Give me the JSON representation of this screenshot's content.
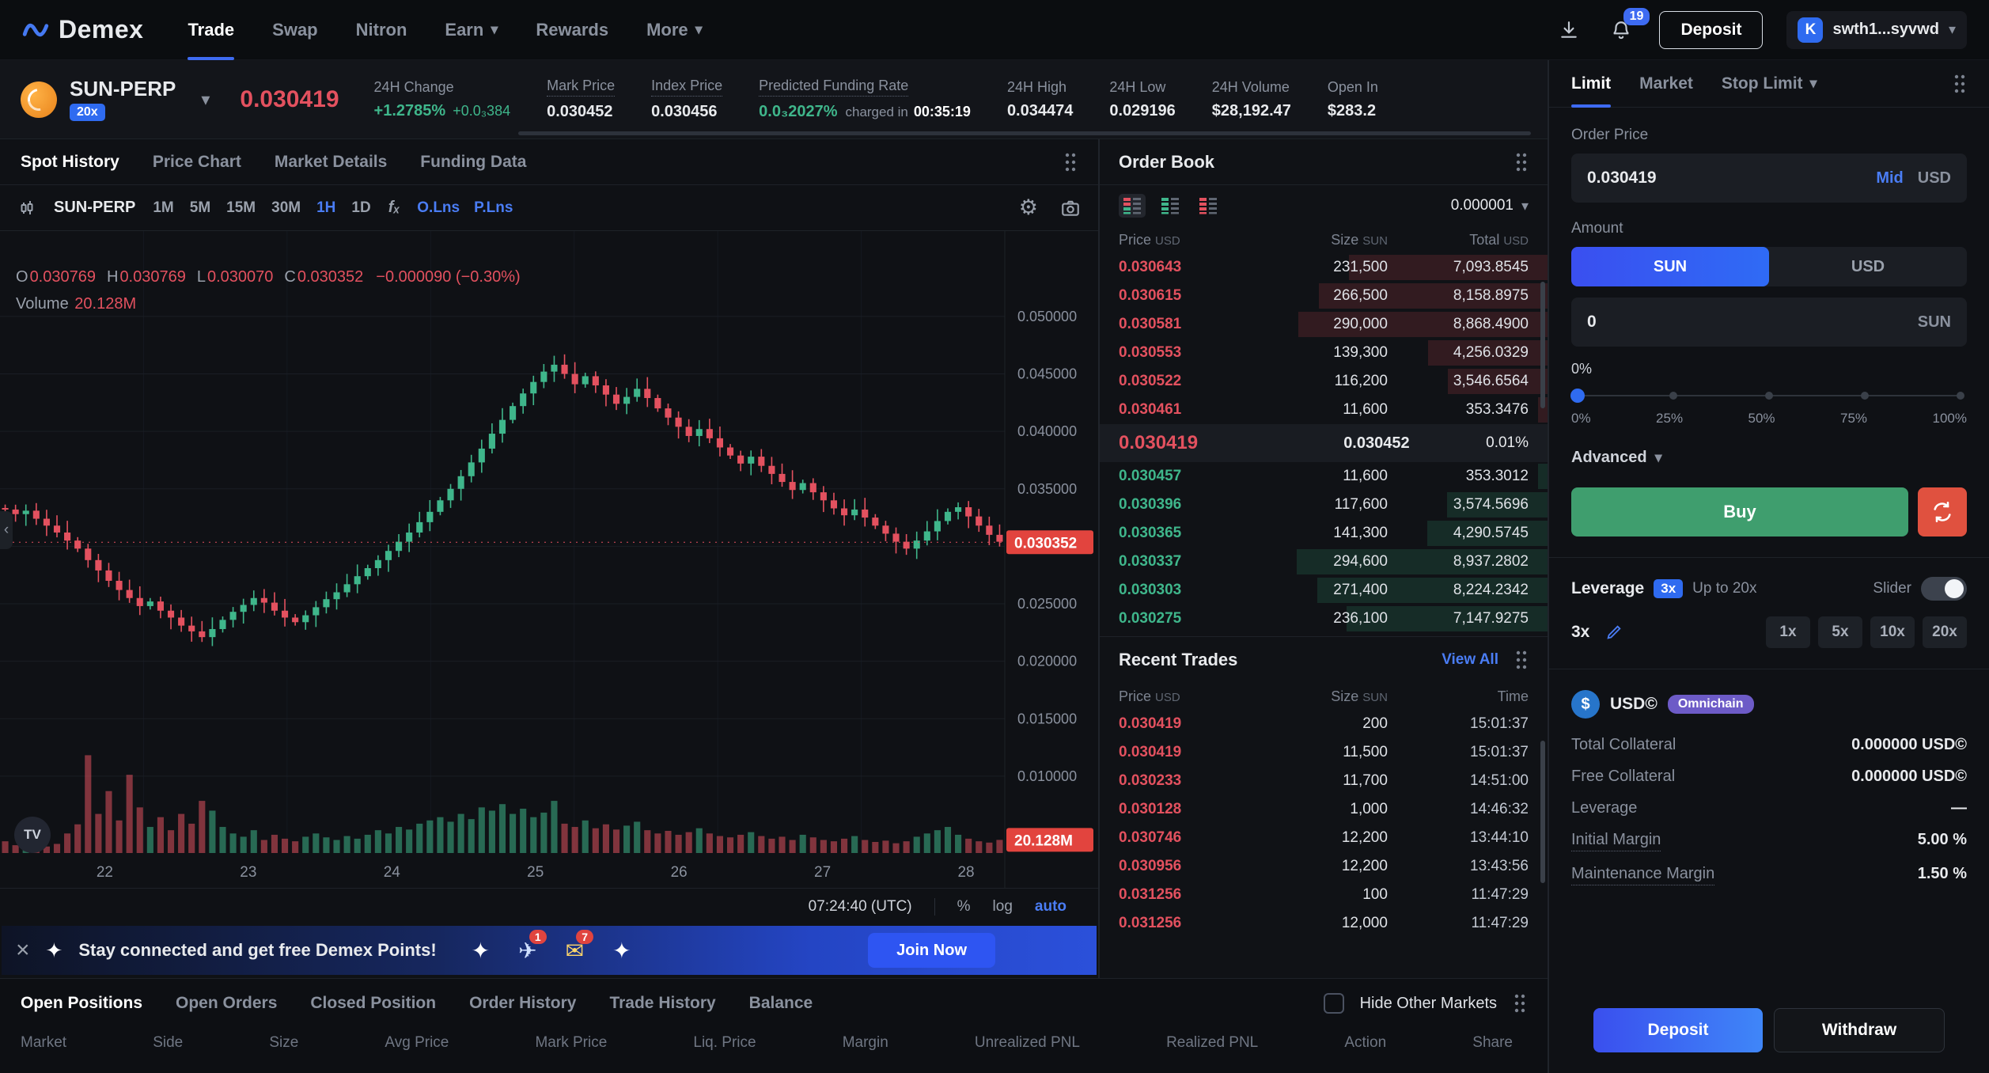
{
  "colors": {
    "accent": "#3e6bf2",
    "link": "#4a7df5",
    "up": "#3fb68b",
    "down": "#e3515f",
    "buy_green": "#3f9e6e",
    "sell_switch": "#e0513f",
    "price_tag": "#e2443e",
    "omnichain_purple": "#6d5bc7"
  },
  "icons": {
    "gear": "⚙",
    "chevron": "▾",
    "close": "×",
    "collapse": "‹",
    "tv": "TV"
  },
  "navbar": {
    "logo_text": "Demex",
    "items": [
      {
        "label": "Trade",
        "active": true,
        "dropdown": false
      },
      {
        "label": "Swap",
        "active": false,
        "dropdown": false
      },
      {
        "label": "Nitron",
        "active": false,
        "dropdown": false
      },
      {
        "label": "Earn",
        "active": false,
        "dropdown": true
      },
      {
        "label": "Rewards",
        "active": false,
        "dropdown": false
      },
      {
        "label": "More",
        "active": false,
        "dropdown": true
      }
    ],
    "notification_badge": "19",
    "deposit_label": "Deposit",
    "wallet_initial": "K",
    "wallet_address": "swth1...syvwd"
  },
  "market_header": {
    "pair": "SUN-PERP",
    "max_leverage_badge": "20x",
    "last_price": "0.030419",
    "stats": [
      {
        "label": "24H Change",
        "value": "+1.2785%",
        "extra": "+0.0₃384",
        "tone": "up",
        "dotted": false
      },
      {
        "label": "Mark Price",
        "value": "0.030452",
        "tone": "normal",
        "dotted": true
      },
      {
        "label": "Index Price",
        "value": "0.030456",
        "tone": "normal",
        "dotted": true
      },
      {
        "label": "Predicted Funding Rate",
        "value": "0.0₃2027%",
        "tone": "up",
        "dotted": true,
        "suffix_label": "charged in",
        "suffix_value": "00:35:19"
      },
      {
        "label": "24H High",
        "value": "0.034474",
        "tone": "normal",
        "dotted": false
      },
      {
        "label": "24H Low",
        "value": "0.029196",
        "tone": "normal",
        "dotted": false
      },
      {
        "label": "24H Volume",
        "value": "$28,192.47",
        "tone": "normal",
        "dotted": false
      },
      {
        "label": "Open In",
        "value": "$283.2",
        "tone": "normal",
        "dotted": false
      }
    ]
  },
  "chart_panel": {
    "tabs": [
      {
        "label": "Spot History",
        "active": true
      },
      {
        "label": "Price Chart",
        "active": false
      },
      {
        "label": "Market Details",
        "active": false
      },
      {
        "label": "Funding Data",
        "active": false
      }
    ],
    "toolbar": {
      "pair": "SUN-PERP",
      "intervals": [
        "1M",
        "5M",
        "15M",
        "30M",
        "1H",
        "1D"
      ],
      "active_interval": "1H",
      "fx": "fₓ",
      "indicators": [
        "O.Lns",
        "P.Lns"
      ]
    },
    "ohlc": {
      "pairs": [
        [
          "O",
          "0.030769"
        ],
        [
          "H",
          "0.030769"
        ],
        [
          "L",
          "0.030070"
        ],
        [
          "C",
          "0.030352"
        ]
      ],
      "change": "−0.000090 (−0.30%)",
      "volume_label": "Volume",
      "volume_value": "20.128M"
    },
    "footer": {
      "time": "07:24:40 (UTC)",
      "percent": "%",
      "log": "log",
      "auto": "auto"
    },
    "last_price_tag": "0.030352",
    "volume_tag": "20.128M"
  },
  "chart_data": {
    "type": "candlestick+volume",
    "x_labels": [
      "22",
      "23",
      "24",
      "25",
      "26",
      "27",
      "28"
    ],
    "y_ticks": [
      "0.050000",
      "0.045000",
      "0.040000",
      "0.035000",
      "0.030000",
      "0.025000",
      "0.020000",
      "0.015000",
      "0.010000"
    ],
    "y_range": [
      0.01,
      0.05
    ],
    "last_price": 0.030352,
    "closes": [
      0.0332,
      0.0328,
      0.0331,
      0.0324,
      0.0318,
      0.0312,
      0.0305,
      0.0298,
      0.0288,
      0.0279,
      0.027,
      0.0262,
      0.0255,
      0.0248,
      0.0252,
      0.0244,
      0.0238,
      0.0231,
      0.0226,
      0.0221,
      0.0228,
      0.0236,
      0.0243,
      0.0249,
      0.0255,
      0.0251,
      0.0244,
      0.0238,
      0.0234,
      0.024,
      0.0247,
      0.0254,
      0.026,
      0.0267,
      0.0274,
      0.0281,
      0.0288,
      0.0296,
      0.0304,
      0.0312,
      0.0321,
      0.033,
      0.034,
      0.035,
      0.0361,
      0.0373,
      0.0385,
      0.0398,
      0.041,
      0.0422,
      0.0433,
      0.0443,
      0.0452,
      0.0458,
      0.045,
      0.0441,
      0.0448,
      0.044,
      0.0432,
      0.0424,
      0.043,
      0.0437,
      0.0429,
      0.042,
      0.0412,
      0.0404,
      0.0396,
      0.0402,
      0.0394,
      0.0386,
      0.0379,
      0.0372,
      0.0378,
      0.037,
      0.0363,
      0.0356,
      0.0349,
      0.0355,
      0.0347,
      0.034,
      0.0333,
      0.0327,
      0.0332,
      0.0325,
      0.0318,
      0.0311,
      0.0304,
      0.0298,
      0.0305,
      0.0313,
      0.0322,
      0.033,
      0.0334,
      0.0326,
      0.0318,
      0.031,
      0.0304
    ],
    "volumes": [
      18,
      12,
      22,
      15,
      10,
      14,
      30,
      44,
      150,
      60,
      95,
      50,
      120,
      70,
      40,
      55,
      35,
      60,
      45,
      80,
      65,
      40,
      30,
      25,
      35,
      20,
      28,
      22,
      18,
      25,
      30,
      24,
      20,
      26,
      22,
      28,
      35,
      30,
      40,
      36,
      45,
      50,
      55,
      48,
      60,
      52,
      70,
      65,
      75,
      60,
      68,
      55,
      62,
      80,
      45,
      40,
      50,
      38,
      44,
      36,
      42,
      48,
      35,
      30,
      34,
      28,
      32,
      38,
      30,
      26,
      24,
      28,
      32,
      26,
      22,
      25,
      20,
      28,
      24,
      20,
      18,
      22,
      26,
      20,
      17,
      19,
      15,
      18,
      25,
      30,
      35,
      40,
      28,
      22,
      18,
      16,
      20.128
    ]
  },
  "order_book": {
    "title": "Order Book",
    "precision": "0.000001",
    "columns": [
      {
        "label": "Price",
        "unit": "USD"
      },
      {
        "label": "Size",
        "unit": "SUN"
      },
      {
        "label": "Total",
        "unit": "USD"
      }
    ],
    "asks": [
      {
        "price": "0.030643",
        "size": "231,500",
        "total": "7,093.8545"
      },
      {
        "price": "0.030615",
        "size": "266,500",
        "total": "8,158.8975"
      },
      {
        "price": "0.030581",
        "size": "290,000",
        "total": "8,868.4900"
      },
      {
        "price": "0.030553",
        "size": "139,300",
        "total": "4,256.0329"
      },
      {
        "price": "0.030522",
        "size": "116,200",
        "total": "3,546.6564"
      },
      {
        "price": "0.030461",
        "size": "11,600",
        "total": "353.3476"
      }
    ],
    "mid": {
      "last_price": "0.030419",
      "mark_price": "0.030452",
      "spread": "0.01%"
    },
    "bids": [
      {
        "price": "0.030457",
        "size": "11,600",
        "total": "353.3012"
      },
      {
        "price": "0.030396",
        "size": "117,600",
        "total": "3,574.5696"
      },
      {
        "price": "0.030365",
        "size": "141,300",
        "total": "4,290.5745"
      },
      {
        "price": "0.030337",
        "size": "294,600",
        "total": "8,937.2802"
      },
      {
        "price": "0.030303",
        "size": "271,400",
        "total": "8,224.2342"
      },
      {
        "price": "0.030275",
        "size": "236,100",
        "total": "7,147.9275"
      }
    ]
  },
  "recent_trades": {
    "title": "Recent Trades",
    "view_all": "View All",
    "columns": [
      {
        "label": "Price",
        "unit": "USD"
      },
      {
        "label": "Size",
        "unit": "SUN"
      },
      {
        "label": "Time",
        "unit": ""
      }
    ],
    "trades": [
      {
        "price": "0.030419",
        "size": "200",
        "time": "15:01:37",
        "side": "down"
      },
      {
        "price": "0.030419",
        "size": "11,500",
        "time": "15:01:37",
        "side": "down"
      },
      {
        "price": "0.030233",
        "size": "11,700",
        "time": "14:51:00",
        "side": "down"
      },
      {
        "price": "0.030128",
        "size": "1,000",
        "time": "14:46:32",
        "side": "down"
      },
      {
        "price": "0.030746",
        "size": "12,200",
        "time": "13:44:10",
        "side": "down"
      },
      {
        "price": "0.030956",
        "size": "12,200",
        "time": "13:43:56",
        "side": "down"
      },
      {
        "price": "0.031256",
        "size": "100",
        "time": "11:47:29",
        "side": "down"
      },
      {
        "price": "0.031256",
        "size": "12,000",
        "time": "11:47:29",
        "side": "down"
      }
    ]
  },
  "order_form": {
    "tabs": [
      {
        "label": "Limit",
        "active": true,
        "dropdown": false
      },
      {
        "label": "Market",
        "active": false,
        "dropdown": false
      },
      {
        "label": "Stop Limit",
        "active": false,
        "dropdown": true
      }
    ],
    "order_price_label": "Order Price",
    "order_price_value": "0.030419",
    "mid_label": "Mid",
    "price_unit": "USD",
    "amount_label": "Amount",
    "denoms": [
      {
        "label": "SUN",
        "active": true
      },
      {
        "label": "USD",
        "active": false
      }
    ],
    "amount_value": "0",
    "amount_unit": "SUN",
    "percent_label": "0%",
    "slider_marks": [
      "0%",
      "25%",
      "50%",
      "75%",
      "100%"
    ],
    "advanced_label": "Advanced",
    "buy_label": "Buy",
    "leverage": {
      "label": "Leverage",
      "badge": "3x",
      "up_to": "Up to 20x",
      "slider_label": "Slider",
      "current": "3x",
      "presets": [
        "1x",
        "5x",
        "10x",
        "20x"
      ]
    },
    "collateral": {
      "token": "USD©",
      "token_badge": "Omnichain",
      "rows": [
        {
          "label": "Total Collateral",
          "value": "0.000000 USD©",
          "dotted": false
        },
        {
          "label": "Free Collateral",
          "value": "0.000000 USD©",
          "dotted": false
        },
        {
          "label": "Leverage",
          "value": "—",
          "dotted": false
        },
        {
          "label": "Initial Margin",
          "value": "5.00 %",
          "dotted": true
        },
        {
          "label": "Maintenance Margin",
          "value": "1.50 %",
          "dotted": true
        }
      ]
    },
    "deposit_label": "Deposit",
    "withdraw_label": "Withdraw"
  },
  "banner": {
    "spark": "✦",
    "text": "Stay connected and get free Demex Points!",
    "join_label": "Join Now",
    "emojis": [
      {
        "glyph": "✦",
        "color": "#ffffff",
        "badge": ""
      },
      {
        "glyph": "✈",
        "color": "#cfe0ff",
        "badge": "1"
      },
      {
        "glyph": "✉",
        "color": "#ffd76a",
        "badge": "7"
      },
      {
        "glyph": "✦",
        "color": "#ffffff",
        "badge": ""
      }
    ]
  },
  "positions_panel": {
    "tabs": [
      {
        "label": "Open Positions",
        "active": true
      },
      {
        "label": "Open Orders",
        "active": false
      },
      {
        "label": "Closed Position",
        "active": false
      },
      {
        "label": "Order History",
        "active": false
      },
      {
        "label": "Trade History",
        "active": false
      },
      {
        "label": "Balance",
        "active": false
      }
    ],
    "hide_other_markets": "Hide Other Markets",
    "columns": [
      "Market",
      "Side",
      "Size",
      "Avg Price",
      "Mark Price",
      "Liq. Price",
      "Margin",
      "Unrealized PNL",
      "Realized PNL",
      "Action",
      "Share"
    ]
  }
}
